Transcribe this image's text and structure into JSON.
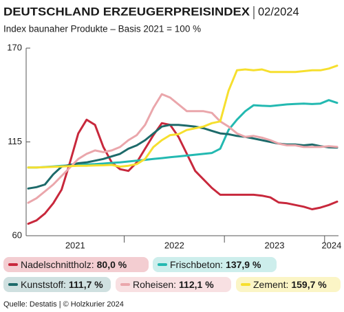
{
  "chart_data": {
    "type": "line",
    "title": "DEUTSCHLAND ERZEUGERPREISINDEX",
    "title_date": "02/2024",
    "subtitle": "Index baunaher Produkte – Basis 2021 = 100 %",
    "source": "Quelle: Destatis | © Holzkurier 2024",
    "categories": [
      "2021",
      null,
      null,
      null,
      null,
      null,
      null,
      null,
      null,
      null,
      null,
      null,
      "2022",
      null,
      null,
      null,
      null,
      null,
      null,
      null,
      null,
      null,
      null,
      null,
      "2023",
      null,
      null,
      null,
      null,
      null,
      null,
      null,
      null,
      null,
      null,
      null,
      "2024",
      null
    ],
    "ylim": [
      60,
      170
    ],
    "yticks": [
      60,
      115,
      170
    ],
    "series": [
      {
        "name": "Nadelschnittholz:",
        "color": "#c8283c",
        "legend_bg": "#f3cdd1",
        "legend_value": {
          "value": 80.0,
          "label": "80,0 %"
        },
        "values": [
          67,
          69,
          73,
          79,
          87,
          103,
          120,
          128,
          125,
          112,
          103,
          99,
          98,
          103,
          111,
          119,
          126,
          125,
          118,
          108,
          98,
          93,
          88,
          84,
          84,
          84,
          84,
          84,
          83.5,
          82.5,
          79.5,
          79,
          78,
          77,
          75.5,
          76.5,
          78,
          80.0
        ]
      },
      {
        "name": "Frischbeton:",
        "color": "#23b9b1",
        "legend_bg": "#cdeeec",
        "legend_value": {
          "value": 137.9,
          "label": "137,9 %"
        },
        "values": [
          100,
          100,
          100.3,
          100.6,
          101,
          101.2,
          101.5,
          101.8,
          102,
          102.3,
          102.7,
          103,
          103.5,
          104,
          104.5,
          105,
          105.5,
          106,
          106.5,
          107,
          107.5,
          108,
          108.5,
          111,
          122,
          128,
          133,
          136.5,
          136.2,
          136,
          136.5,
          137,
          137.3,
          137.5,
          137.2,
          137.5,
          139.5,
          137.9
        ]
      },
      {
        "name": "Kunststoff:",
        "color": "#1d6a6a",
        "legend_bg": "#cfe0e0",
        "legend_value": {
          "value": 111.7,
          "label": "111,7 %"
        },
        "values": [
          87.7,
          88.5,
          90,
          96,
          100.5,
          101.5,
          102.5,
          103,
          104,
          105,
          106.5,
          108,
          111,
          113,
          116,
          120,
          124,
          125,
          125,
          124.5,
          124,
          123,
          121.5,
          120,
          119.5,
          118.5,
          118,
          117,
          116,
          115,
          114,
          113.5,
          113.5,
          113,
          113.5,
          112.5,
          111.8,
          111.7
        ]
      },
      {
        "name": "Roheisen:",
        "color": "#eaa6ab",
        "legend_bg": "#f8e0e2",
        "legend_value": {
          "value": 112.1,
          "label": "112,1 %"
        },
        "values": [
          79.3,
          82,
          86,
          90,
          95,
          100,
          105,
          108,
          110,
          109,
          110,
          112,
          116,
          119,
          125,
          135,
          143,
          141,
          137,
          133,
          133,
          133,
          132,
          127,
          124,
          120,
          118,
          118.5,
          117.5,
          116,
          114,
          113,
          113,
          112,
          112,
          112,
          112.5,
          112.1
        ]
      },
      {
        "name": "Zement:",
        "color": "#f6df2e",
        "legend_bg": "#fbf5c6",
        "legend_value": {
          "value": 159.7,
          "label": "159,7 %"
        },
        "values": [
          100,
          100,
          100.2,
          100.4,
          100.6,
          100.8,
          101,
          101,
          101.2,
          101.3,
          101.5,
          100.5,
          101,
          102,
          105,
          112,
          116,
          119,
          119.5,
          122,
          123,
          124,
          126,
          127,
          145,
          157,
          157.5,
          157,
          157.5,
          156,
          156,
          156,
          156,
          156.5,
          157,
          157,
          158,
          159.7
        ]
      }
    ]
  }
}
